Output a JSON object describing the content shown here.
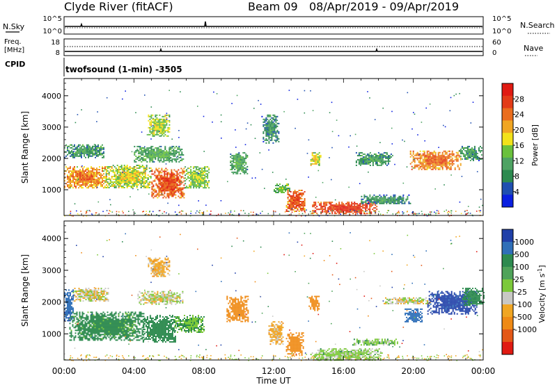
{
  "header": {
    "station": "Clyde River (fitACF)",
    "beam": "Beam 09",
    "date_range": "08/Apr/2019 - 09/Apr/2019"
  },
  "top_panels": {
    "nsky_label": "N.Sky",
    "nsearch_label": "N.Search",
    "noise_ticks_left": [
      "10^5",
      "10^0"
    ],
    "noise_ticks_right": [
      "10^5",
      "10^0"
    ],
    "freq_label_1": "Freq.",
    "freq_label_2": "[MHz]",
    "freq_ticks": [
      "18",
      "8"
    ],
    "nave_label": "Nave",
    "nave_ticks": [
      "60",
      "0"
    ],
    "cpid_label": "CPID",
    "cpid_text": "twofsound (1-min) -3505"
  },
  "chart_data": [
    {
      "type": "heatmap",
      "panel": "power",
      "ylabel": "Slant Range [km]",
      "ylim": [
        180,
        4550
      ],
      "xlim": [
        0,
        24
      ],
      "yticks": [
        "1000",
        "2000",
        "3000",
        "4000"
      ],
      "colorbar": {
        "label": "Power [dB]",
        "ticks": [
          "4",
          "8",
          "12",
          "16",
          "20",
          "24",
          "28"
        ],
        "colors": [
          "#0a1fe0",
          "#1f4fb0",
          "#2c8a4f",
          "#4ea363",
          "#6ac13c",
          "#f2e21a",
          "#f0a623",
          "#ea6d1d",
          "#e33b17",
          "#e01a12"
        ]
      },
      "blobs": [
        {
          "x0": 0.0,
          "x1": 2.4,
          "y0": 1050,
          "y1": 1750,
          "v": 24
        },
        {
          "x0": 0.0,
          "x1": 2.3,
          "y0": 2050,
          "y1": 2450,
          "v": 11
        },
        {
          "x0": 2.3,
          "x1": 5.0,
          "y0": 1050,
          "y1": 1800,
          "v": 18
        },
        {
          "x0": 5.0,
          "x1": 6.9,
          "y0": 750,
          "y1": 1700,
          "v": 27
        },
        {
          "x0": 6.9,
          "x1": 8.3,
          "y0": 1050,
          "y1": 1750,
          "v": 16
        },
        {
          "x0": 4.0,
          "x1": 6.8,
          "y0": 1900,
          "y1": 2400,
          "v": 13
        },
        {
          "x0": 4.8,
          "x1": 6.0,
          "y0": 2700,
          "y1": 3400,
          "v": 17
        },
        {
          "x0": 9.5,
          "x1": 10.5,
          "y0": 1500,
          "y1": 2200,
          "v": 13
        },
        {
          "x0": 11.3,
          "x1": 12.3,
          "y0": 2500,
          "y1": 3400,
          "v": 10
        },
        {
          "x0": 12.0,
          "x1": 12.9,
          "y0": 900,
          "y1": 1200,
          "v": 15
        },
        {
          "x0": 12.7,
          "x1": 13.8,
          "y0": 300,
          "y1": 1000,
          "v": 27
        },
        {
          "x0": 14.1,
          "x1": 14.7,
          "y0": 1800,
          "y1": 2200,
          "v": 19
        },
        {
          "x0": 14.2,
          "x1": 17.9,
          "y0": 250,
          "y1": 620,
          "v": 29
        },
        {
          "x0": 17.0,
          "x1": 19.8,
          "y0": 550,
          "y1": 850,
          "v": 10
        },
        {
          "x0": 16.7,
          "x1": 18.8,
          "y0": 1800,
          "y1": 2200,
          "v": 11
        },
        {
          "x0": 19.8,
          "x1": 22.7,
          "y0": 1650,
          "y1": 2250,
          "v": 25
        },
        {
          "x0": 22.6,
          "x1": 23.9,
          "y0": 1950,
          "y1": 2400,
          "v": 11
        }
      ]
    },
    {
      "type": "heatmap",
      "panel": "velocity",
      "ylabel": "Slant Range [km]",
      "xlabel": "Time UT",
      "ylim": [
        180,
        4550
      ],
      "xlim": [
        0,
        24
      ],
      "xticks": [
        "00:00",
        "04:00",
        "08:00",
        "12:00",
        "16:00",
        "20:00",
        "00:00"
      ],
      "yticks": [
        "1000",
        "2000",
        "3000",
        "4000"
      ],
      "colorbar": {
        "label": "Velocity [m s^-1]",
        "ticks": [
          "1000",
          "500",
          "100",
          "25",
          "-25",
          "-100",
          "-500",
          "-1000"
        ],
        "colors": [
          "#1f3fa8",
          "#2f6fb8",
          "#2d8a4f",
          "#4fa35a",
          "#7cc93a",
          "#c8c8c4",
          "#f0a623",
          "#ef8a15",
          "#e35817",
          "#e01a12"
        ]
      },
      "blobs": [
        {
          "x0": 0.0,
          "x1": 0.5,
          "y0": 1400,
          "y1": 2400,
          "v": 700
        },
        {
          "x0": 0.3,
          "x1": 4.6,
          "y0": 800,
          "y1": 1700,
          "v": 150
        },
        {
          "x0": 0.5,
          "x1": 2.5,
          "y0": 2050,
          "y1": 2450,
          "v": 0
        },
        {
          "x0": 4.5,
          "x1": 6.4,
          "y0": 750,
          "y1": 1600,
          "v": 200
        },
        {
          "x0": 6.3,
          "x1": 8.0,
          "y0": 1050,
          "y1": 1600,
          "v": 100
        },
        {
          "x0": 4.8,
          "x1": 6.0,
          "y0": 2800,
          "y1": 3400,
          "v": -60
        },
        {
          "x0": 4.2,
          "x1": 6.8,
          "y0": 1950,
          "y1": 2350,
          "v": 10
        },
        {
          "x0": 9.3,
          "x1": 10.5,
          "y0": 1400,
          "y1": 2200,
          "v": -300
        },
        {
          "x0": 11.7,
          "x1": 12.5,
          "y0": 700,
          "y1": 1400,
          "v": -60
        },
        {
          "x0": 12.7,
          "x1": 13.7,
          "y0": 350,
          "y1": 1050,
          "v": -300
        },
        {
          "x0": 14.0,
          "x1": 14.6,
          "y0": 1750,
          "y1": 2200,
          "v": -400
        },
        {
          "x0": 14.1,
          "x1": 18.2,
          "y0": 200,
          "y1": 550,
          "v": 50
        },
        {
          "x0": 16.5,
          "x1": 19.2,
          "y0": 650,
          "y1": 850,
          "v": 60
        },
        {
          "x0": 18.3,
          "x1": 21.0,
          "y0": 1950,
          "y1": 2150,
          "v": 0
        },
        {
          "x0": 19.5,
          "x1": 20.5,
          "y0": 1400,
          "y1": 1800,
          "v": 600
        },
        {
          "x0": 20.8,
          "x1": 23.6,
          "y0": 1650,
          "y1": 2350,
          "v": 800
        },
        {
          "x0": 22.8,
          "x1": 24.0,
          "y0": 1900,
          "y1": 2450,
          "v": 250
        }
      ]
    }
  ]
}
